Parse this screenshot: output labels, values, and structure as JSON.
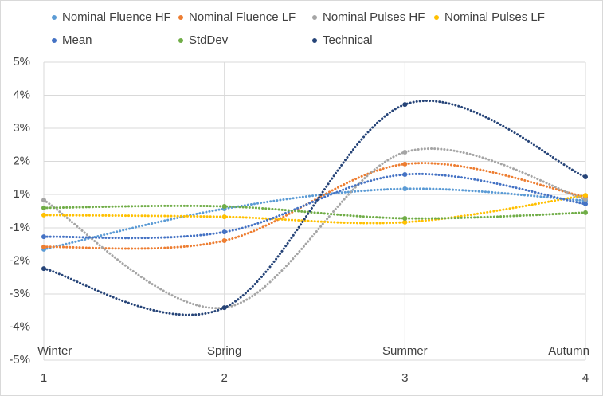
{
  "chart_data": {
    "type": "line",
    "smooth": true,
    "line_style": "dotted",
    "categories": [
      "Winter",
      "Spring",
      "Summer",
      "Autumn"
    ],
    "x": [
      1,
      2,
      3,
      4
    ],
    "xlim": [
      1,
      4
    ],
    "xticks": [
      1,
      2,
      3,
      4
    ],
    "ylim": [
      -5,
      5
    ],
    "yticks": [
      {
        "value": -5,
        "label": "-5%"
      },
      {
        "value": -3.89,
        "label": "-4%"
      },
      {
        "value": -2.78,
        "label": "-3%"
      },
      {
        "value": -1.67,
        "label": "-2%"
      },
      {
        "value": -0.56,
        "label": "-1%"
      },
      {
        "value": 0.56,
        "label": "1%"
      },
      {
        "value": 1.67,
        "label": "2%"
      },
      {
        "value": 2.78,
        "label": "3%"
      },
      {
        "value": 3.89,
        "label": "4%"
      },
      {
        "value": 5,
        "label": "5%"
      }
    ],
    "grid": true,
    "legend": "top",
    "series": [
      {
        "name": "Nominal Fluence HF",
        "color": "#5b9bd5",
        "values": [
          -1.28,
          0.08,
          0.75,
          0.35
        ]
      },
      {
        "name": "Nominal Fluence LF",
        "color": "#ed7d31",
        "values": [
          -1.2,
          -0.99,
          1.58,
          0.48
        ]
      },
      {
        "name": "Nominal Pulses HF",
        "color": "#a5a5a5",
        "values": [
          0.37,
          -3.24,
          1.98,
          0.4
        ]
      },
      {
        "name": "Nominal Pulses LF",
        "color": "#ffc000",
        "values": [
          -0.13,
          -0.19,
          -0.37,
          0.53
        ]
      },
      {
        "name": "Mean",
        "color": "#4472c4",
        "values": [
          -0.86,
          -0.7,
          1.23,
          0.24
        ]
      },
      {
        "name": "StdDev",
        "color": "#70ad47",
        "values": [
          0.11,
          0.16,
          -0.24,
          -0.05
        ]
      },
      {
        "name": "Technical",
        "color": "#264478",
        "values": [
          -1.93,
          -3.24,
          3.58,
          1.15
        ]
      }
    ]
  }
}
